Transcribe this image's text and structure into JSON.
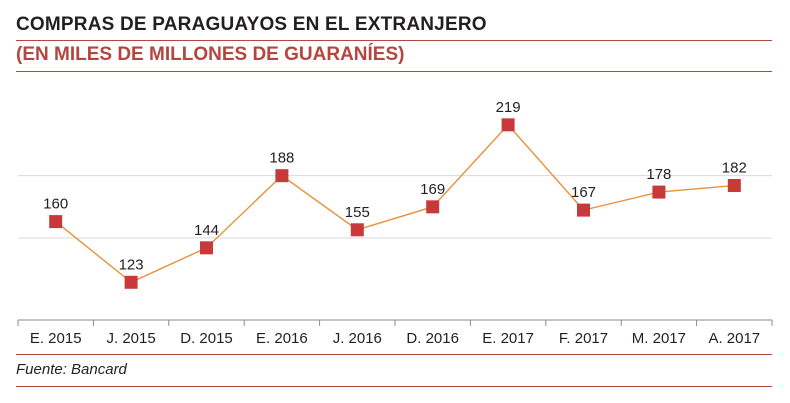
{
  "title": "COMPRAS DE PARAGUAYOS EN EL EXTRANJERO",
  "subtitle": "(EN MILES DE MILLONES DE GUARANÍES)",
  "source": "Fuente: Bancard",
  "colors": {
    "accent": "#b5453f",
    "line": "#e8913a",
    "marker": "#c8393a",
    "grid": "#d9d9d9",
    "axis": "#8a8a8a"
  },
  "chart_data": {
    "type": "line",
    "title": "COMPRAS DE PARAGUAYOS EN EL EXTRANJERO",
    "subtitle": "(EN MILES DE MILLONES DE GUARANÍES)",
    "categories": [
      "E. 2015",
      "J. 2015",
      "D. 2015",
      "E. 2016",
      "J. 2016",
      "D. 2016",
      "E. 2017",
      "F. 2017",
      "M. 2017",
      "A. 2017"
    ],
    "values": [
      160,
      123,
      144,
      188,
      155,
      169,
      219,
      167,
      178,
      182
    ],
    "data_labels": [
      "160",
      "123",
      "144",
      "188",
      "155",
      "169",
      "219",
      "167",
      "178",
      "182"
    ],
    "ylim": [
      100,
      230
    ],
    "gridlines": [
      150,
      188
    ],
    "grid": true,
    "legend": "none",
    "xlabel": "",
    "ylabel": ""
  }
}
